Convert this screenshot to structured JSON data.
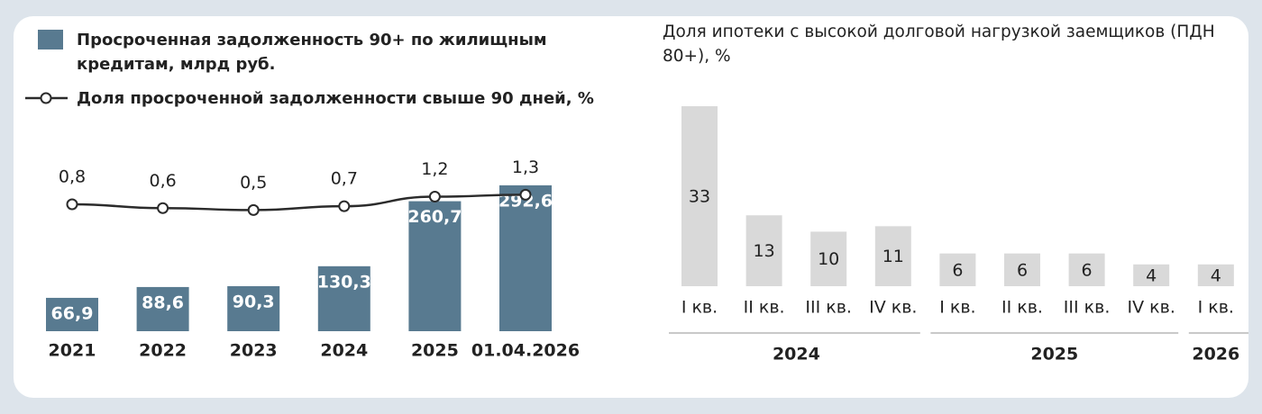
{
  "chart_data": [
    {
      "type": "combo",
      "categories": [
        "2021",
        "2022",
        "2023",
        "2024",
        "2025",
        "01.04.2026"
      ],
      "series": [
        {
          "name": "Просроченная задолженность 90+ по жилищным кредитам, млрд руб.",
          "type": "bar",
          "color": "#587a90",
          "values": [
            66.9,
            88.6,
            90.3,
            130.3,
            260.7,
            292.6
          ],
          "value_labels": [
            "66,9",
            "88,6",
            "90,3",
            "130,3",
            "260,7",
            "292,6"
          ]
        },
        {
          "name": "Доля просроченной задолженности свыше 90 дней, %",
          "type": "line",
          "color": "#2b2b2b",
          "values": [
            0.8,
            0.6,
            0.5,
            0.7,
            1.2,
            1.3
          ],
          "value_labels": [
            "0,8",
            "0,6",
            "0,5",
            "0,7",
            "1,2",
            "1,3"
          ]
        }
      ]
    },
    {
      "type": "bar",
      "title": "Доля ипотеки с высокой долговой нагрузкой заемщиков (ПДН 80+), %",
      "categories": [
        "I кв.",
        "II кв.",
        "III кв.",
        "IV кв.",
        "I кв.",
        "II кв.",
        "III кв.",
        "IV кв.",
        "I кв."
      ],
      "groups": [
        "2024",
        "2024",
        "2024",
        "2024",
        "2025",
        "2025",
        "2025",
        "2025",
        "2026"
      ],
      "values": [
        33,
        13,
        10,
        11,
        6,
        6,
        6,
        4,
        4
      ],
      "color": "#d9d9d9"
    }
  ]
}
